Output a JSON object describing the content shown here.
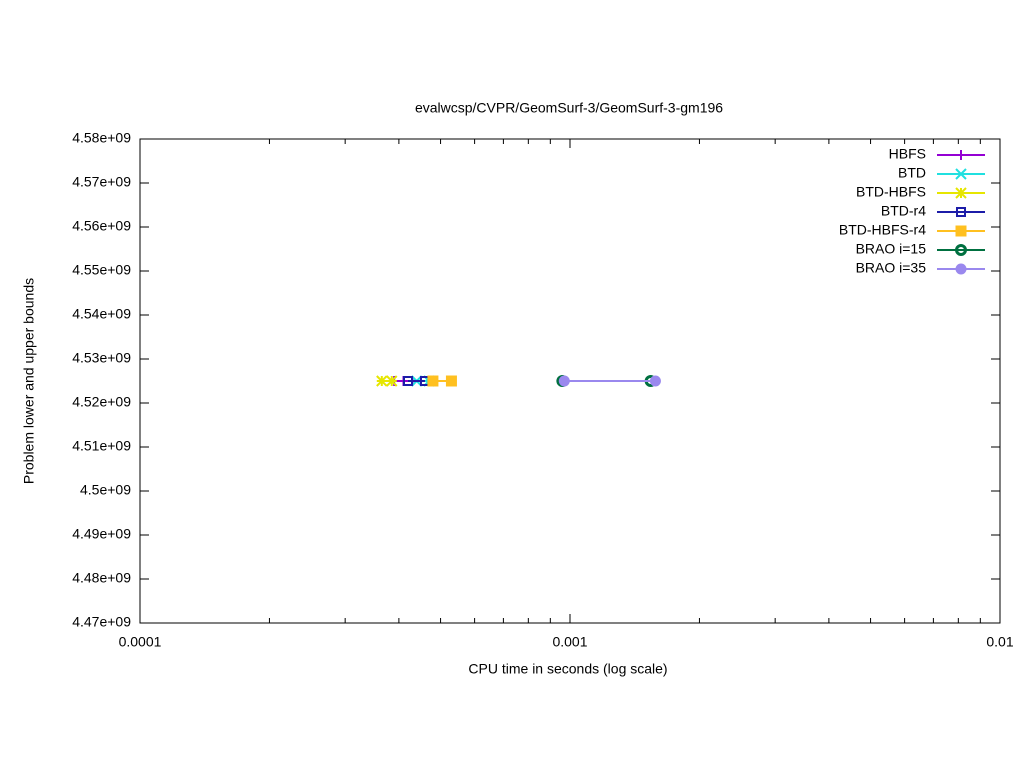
{
  "chart_data": {
    "type": "line",
    "title": "evalwcsp/CVPR/GeomSurf-3/GeomSurf-3-gm196",
    "xlabel": "CPU time in seconds (log scale)",
    "ylabel": "Problem lower and upper bounds",
    "xscale": "log",
    "xlim": [
      0.0001,
      0.01
    ],
    "xticks": [
      0.0001,
      0.001,
      0.01
    ],
    "xminorticks": [
      0.0002,
      0.0003,
      0.0004,
      0.0005,
      0.0006,
      0.0007,
      0.0008,
      0.0009,
      0.002,
      0.003,
      0.004,
      0.005,
      0.006,
      0.007,
      0.008,
      0.009
    ],
    "ylim": [
      4470000000,
      4580000000
    ],
    "yticks": [
      {
        "value": 4470000000,
        "label": "4.47e+09"
      },
      {
        "value": 4480000000,
        "label": "4.48e+09"
      },
      {
        "value": 4490000000,
        "label": "4.49e+09"
      },
      {
        "value": 4500000000,
        "label": "4.5e+09"
      },
      {
        "value": 4510000000,
        "label": "4.51e+09"
      },
      {
        "value": 4520000000,
        "label": "4.52e+09"
      },
      {
        "value": 4530000000,
        "label": "4.53e+09"
      },
      {
        "value": 4540000000,
        "label": "4.54e+09"
      },
      {
        "value": 4550000000,
        "label": "4.55e+09"
      },
      {
        "value": 4560000000,
        "label": "4.56e+09"
      },
      {
        "value": 4570000000,
        "label": "4.57e+09"
      },
      {
        "value": 4580000000,
        "label": "4.58e+09"
      }
    ],
    "legend": "upper right",
    "series": [
      {
        "name": "HBFS",
        "color": "#9400d3",
        "marker": "plus",
        "x": [
          0.00039,
          0.00041,
          0.00043
        ],
        "values": [
          4525000000,
          4525000000,
          4525000000
        ]
      },
      {
        "name": "BTD",
        "color": "#20e0e0",
        "marker": "cross",
        "x": [
          0.00044,
          0.00047
        ],
        "values": [
          4525000000,
          4525000000
        ]
      },
      {
        "name": "BTD-HBFS",
        "color": "#e6e600",
        "marker": "star",
        "x": [
          0.000365,
          0.000385
        ],
        "values": [
          4525000000,
          4525000000
        ]
      },
      {
        "name": "BTD-r4",
        "color": "#1c1ca8",
        "marker": "square",
        "x": [
          0.00042,
          0.00046
        ],
        "values": [
          4525000000,
          4525000000
        ]
      },
      {
        "name": "BTD-HBFS-r4",
        "color": "#ffc020",
        "marker": "filled-square",
        "x": [
          0.00048,
          0.00053
        ],
        "values": [
          4525000000,
          4525000000
        ]
      },
      {
        "name": "BRAO i=15",
        "color": "#007040",
        "marker": "ring",
        "x": [
          0.00096,
          0.00154
        ],
        "values": [
          4525000000,
          4525000000
        ]
      },
      {
        "name": "BRAO i=35",
        "color": "#9a88ee",
        "marker": "filled-circle",
        "x": [
          0.00097,
          0.00158
        ],
        "values": [
          4525000000,
          4525000000
        ]
      }
    ]
  }
}
